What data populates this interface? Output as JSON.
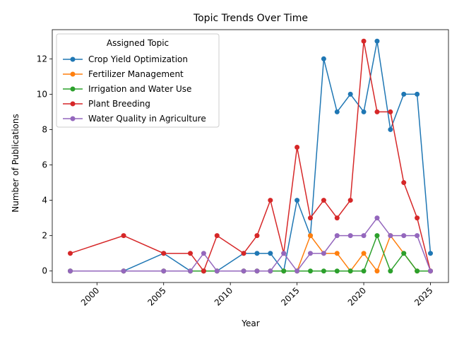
{
  "chart_data": {
    "type": "line",
    "title": "Topic Trends Over Time",
    "xlabel": "Year",
    "ylabel": "Number of Publications",
    "xlim": [
      1996.65,
      2026.35
    ],
    "ylim": [
      -0.65,
      13.65
    ],
    "xticks": [
      2000,
      2005,
      2010,
      2015,
      2020,
      2025
    ],
    "yticks": [
      0,
      2,
      4,
      6,
      8,
      10,
      12
    ],
    "grid": false,
    "legend": {
      "title": "Assigned Topic",
      "placement": "top-left"
    },
    "x": [
      1998,
      2002,
      2005,
      2007,
      2008,
      2009,
      2011,
      2012,
      2013,
      2014,
      2015,
      2016,
      2017,
      2018,
      2019,
      2020,
      2021,
      2022,
      2023,
      2024,
      2025
    ],
    "series": [
      {
        "name": "Crop Yield Optimization",
        "color": "#1f77b4",
        "values": [
          0,
          0,
          1,
          0,
          0,
          0,
          1,
          1,
          1,
          0,
          4,
          2,
          12,
          9,
          10,
          9,
          13,
          8,
          10,
          10,
          1
        ]
      },
      {
        "name": "Fertilizer Management",
        "color": "#ff7f0e",
        "values": [
          0,
          0,
          0,
          0,
          0,
          0,
          0,
          0,
          0,
          0,
          0,
          2,
          1,
          1,
          0,
          1,
          0,
          2,
          1,
          0,
          0
        ]
      },
      {
        "name": "Irrigation and Water Use",
        "color": "#2ca02c",
        "values": [
          0,
          0,
          0,
          0,
          0,
          0,
          0,
          0,
          0,
          0,
          0,
          0,
          0,
          0,
          0,
          0,
          2,
          0,
          1,
          0,
          0
        ]
      },
      {
        "name": "Plant Breeding",
        "color": "#d62728",
        "values": [
          1,
          2,
          1,
          1,
          0,
          2,
          1,
          2,
          4,
          1,
          7,
          3,
          4,
          3,
          4,
          13,
          9,
          9,
          5,
          3,
          0
        ]
      },
      {
        "name": "Water Quality in Agriculture",
        "color": "#9467bd",
        "values": [
          0,
          0,
          0,
          0,
          1,
          0,
          0,
          0,
          0,
          1,
          0,
          1,
          1,
          2,
          2,
          2,
          3,
          2,
          2,
          2,
          0
        ]
      }
    ]
  }
}
